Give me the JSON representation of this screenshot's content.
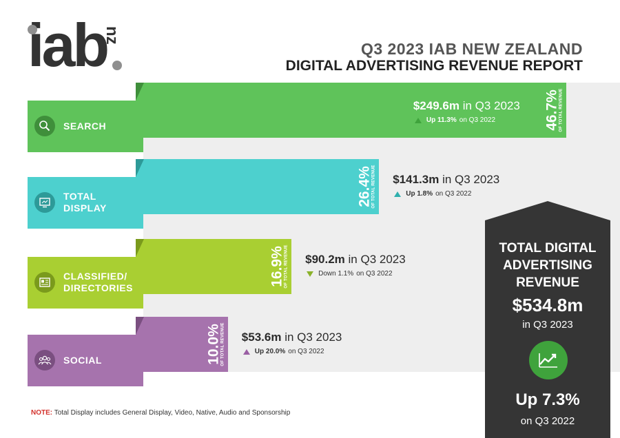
{
  "header": {
    "logo_main": "iab",
    "logo_sub": "nz",
    "title_line1": "Q3 2023 IAB NEW ZEALAND",
    "title_line2": "DIGITAL ADVERTISING REVENUE REPORT"
  },
  "chart_data": {
    "type": "bar",
    "orientation": "horizontal",
    "title": "Q3 2023 IAB NEW ZEALAND DIGITAL ADVERTISING REVENUE REPORT",
    "categories": [
      "SEARCH",
      "TOTAL DISPLAY",
      "CLASSIFIED/ DIRECTORIES",
      "SOCIAL"
    ],
    "values": [
      46.7,
      26.4,
      16.9,
      10.0
    ],
    "value_unit": "% OF TOTAL REVENUE",
    "bars": [
      {
        "label_lines": [
          "SEARCH"
        ],
        "icon": "search-icon",
        "color": "#5fc35a",
        "fold_color": "#3f8f3b",
        "percent": 46.7,
        "percent_label": "46.7%",
        "percent_sub": "OF TOTAL REVENUE",
        "amount_label": "$249.6m",
        "amount_suffix": "in Q3 2023",
        "change_direction": "up",
        "change_value": "Up 11.3%",
        "change_suffix": "on Q3 2022",
        "change_color": "#3fa33c"
      },
      {
        "label_lines": [
          "TOTAL",
          "DISPLAY"
        ],
        "icon": "monitor-icon",
        "color": "#4dd0ce",
        "fold_color": "#2d9a98",
        "percent": 26.4,
        "percent_label": "26.4%",
        "percent_sub": "OF TOTAL REVENUE",
        "amount_label": "$141.3m",
        "amount_suffix": "in Q3 2023",
        "change_direction": "up",
        "change_value": "Up 1.8%",
        "change_suffix": "on Q3 2022",
        "change_color": "#2fb0ae"
      },
      {
        "label_lines": [
          "CLASSIFIED/",
          "DIRECTORIES"
        ],
        "icon": "newspaper-icon",
        "color": "#a9cf32",
        "fold_color": "#7a9a1c",
        "percent": 16.9,
        "percent_label": "16.9%",
        "percent_sub": "OF TOTAL REVENUE",
        "amount_label": "$90.2m",
        "amount_suffix": "in Q3 2023",
        "change_direction": "down",
        "change_value": "Down 1.1%",
        "change_suffix": "on Q3 2022",
        "change_color": "#8ab22a"
      },
      {
        "label_lines": [
          "SOCIAL"
        ],
        "icon": "people-icon",
        "color": "#a673ad",
        "fold_color": "#7a4f80",
        "percent": 10.0,
        "percent_label": "10.0%",
        "percent_sub": "OF TOTAL REVENUE",
        "amount_label": "$53.6m",
        "amount_suffix": "in Q3 2023",
        "change_direction": "up",
        "change_value": "Up 20.0%",
        "change_suffix": "on Q3 2022",
        "change_color": "#9a5fa3"
      }
    ]
  },
  "total": {
    "title_lines": [
      "TOTAL DIGITAL",
      "ADVERTISING",
      "REVENUE"
    ],
    "amount": "$534.8m",
    "period": "in Q3 2023",
    "icon": "trend-up-icon",
    "change": "Up 7.3%",
    "change_period": "on Q3 2022"
  },
  "note": {
    "label": "NOTE:",
    "text": "Total Display includes General Display, Video, Native, Audio and Sponsorship"
  }
}
